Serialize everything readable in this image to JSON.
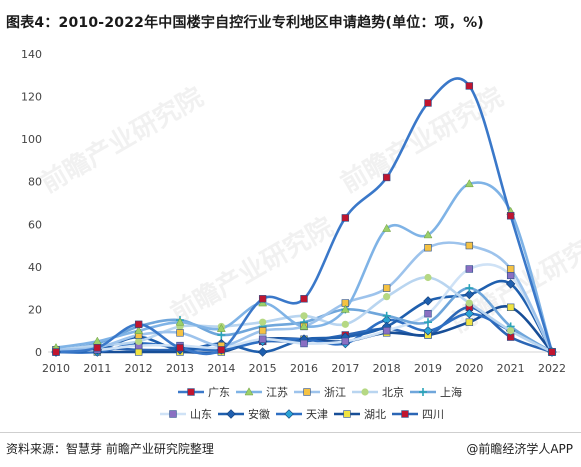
{
  "title": "图表4：2010-2022年中国楼宇自控行业专利地区申请趋势(单位：项，%)",
  "watermark": "前瞻产业研究院",
  "footer": {
    "source": "资料来源：智慧芽 前瞻产业研究院整理",
    "brand": "@前瞻经济学人APP"
  },
  "chart_data": {
    "type": "line",
    "categories": [
      "2010",
      "2011",
      "2012",
      "2013",
      "2014",
      "2015",
      "2016",
      "2017",
      "2018",
      "2019",
      "2020",
      "2021",
      "2022"
    ],
    "ylim": [
      0,
      140
    ],
    "yticks": [
      "0",
      "20",
      "40",
      "60",
      "80",
      "100",
      "120",
      "140"
    ],
    "grid": false,
    "legend": "bottom",
    "series": [
      {
        "name": "广东",
        "color": "#3a78c9",
        "marker": "square",
        "markerColor": "#c0152f",
        "values": [
          0,
          2,
          13,
          2,
          1,
          25,
          25,
          63,
          82,
          117,
          125,
          64,
          0
        ]
      },
      {
        "name": "江苏",
        "color": "#7fb3e6",
        "marker": "triangle",
        "markerColor": "#9bd06a",
        "values": [
          2,
          5,
          10,
          14,
          11,
          23,
          12,
          20,
          58,
          55,
          79,
          66,
          0
        ]
      },
      {
        "name": "浙江",
        "color": "#9dc3ec",
        "marker": "square",
        "markerColor": "#f5c243",
        "values": [
          1,
          2,
          8,
          9,
          3,
          10,
          12,
          23,
          30,
          49,
          50,
          39,
          0
        ]
      },
      {
        "name": "北京",
        "color": "#b9d5f0",
        "marker": "circle",
        "markerColor": "#b5d883",
        "values": [
          1,
          3,
          5,
          12,
          12,
          14,
          17,
          13,
          26,
          35,
          23,
          10,
          0
        ]
      },
      {
        "name": "上海",
        "color": "#6fa6db",
        "marker": "star",
        "markerColor": "#2aa3b8",
        "values": [
          1,
          4,
          12,
          15,
          8,
          12,
          14,
          20,
          17,
          14,
          30,
          12,
          0
        ]
      },
      {
        "name": "山东",
        "color": "#cfe2f6",
        "marker": "square",
        "markerColor": "#8a6fc2",
        "values": [
          1,
          1,
          3,
          3,
          2,
          6,
          4,
          5,
          10,
          18,
          39,
          36,
          0
        ]
      },
      {
        "name": "安徽",
        "color": "#1f5fae",
        "marker": "diamond",
        "markerColor": "#1f5fae",
        "values": [
          0,
          1,
          7,
          1,
          4,
          0,
          6,
          7,
          12,
          24,
          27,
          32,
          0
        ]
      },
      {
        "name": "天津",
        "color": "#2e6fc3",
        "marker": "diamond",
        "markerColor": "#2aa3d6",
        "values": [
          0,
          0,
          4,
          2,
          1,
          5,
          6,
          4,
          15,
          10,
          18,
          10,
          0
        ]
      },
      {
        "name": "湖北",
        "color": "#174e97",
        "marker": "square",
        "markerColor": "#f0e340",
        "values": [
          0,
          0,
          0,
          0,
          0,
          6,
          6,
          5,
          9,
          8,
          14,
          21,
          0
        ]
      },
      {
        "name": "四川",
        "color": "#2b66b5",
        "marker": "square",
        "markerColor": "#c0152f",
        "values": [
          0,
          2,
          1,
          1,
          2,
          5,
          5,
          8,
          11,
          8,
          21,
          7,
          0
        ]
      }
    ]
  }
}
